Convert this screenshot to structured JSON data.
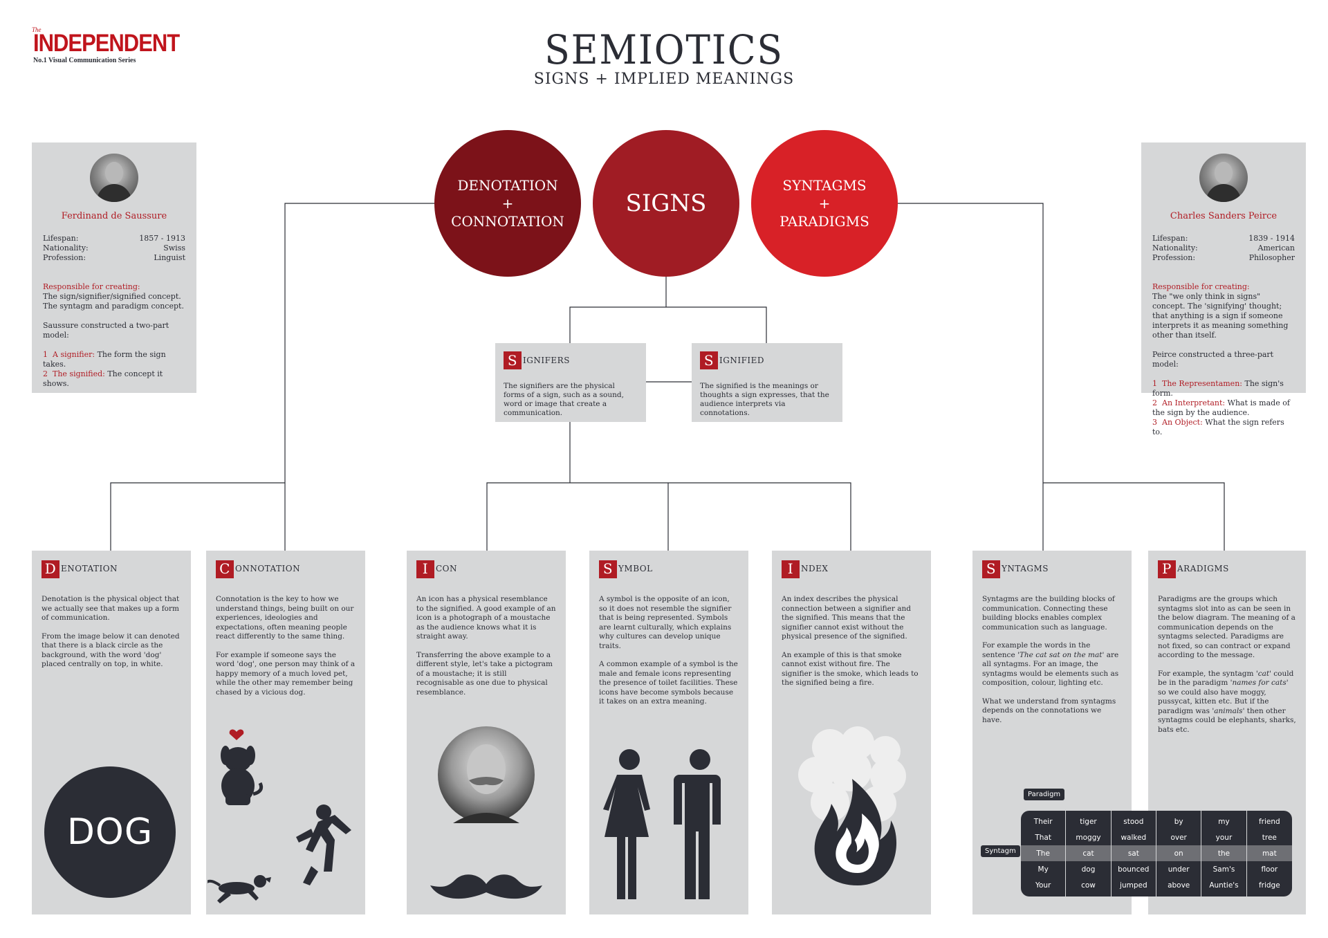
{
  "logo": {
    "the": "The",
    "name": "INDEPENDENT",
    "series": "No.1 Visual Communication Series"
  },
  "title": "SEMIOTICS",
  "subtitle": "SIGNS + IMPLIED MEANINGS",
  "circles": {
    "denotation": [
      "DENOTATION",
      "+",
      "CONNOTATION"
    ],
    "signs": "SIGNS",
    "syntagms": [
      "SYNTAGMS",
      "+",
      "PARADIGMS"
    ]
  },
  "colors": {
    "dark_red": "#7c1219",
    "mid_red": "#a01c24",
    "bright_red": "#d82127",
    "panel_grey": "#d6d7d8",
    "charcoal": "#2b2d35"
  },
  "saussure": {
    "name": "Ferdinand de Saussure",
    "lifespan_label": "Lifespan:",
    "lifespan": "1857 - 1913",
    "nationality_label": "Nationality:",
    "nationality": "Swiss",
    "profession_label": "Profession:",
    "profession": "Linguist",
    "responsible_label": "Responsible for creating:",
    "responsible_1": "The sign/signifier/signified concept.",
    "responsible_2": "The syntagm and paradigm concept.",
    "model": "Saussure constructed a two-part model:",
    "items": [
      {
        "n": "1",
        "label": "A signifier:",
        "text": "The form the sign takes."
      },
      {
        "n": "2",
        "label": "The signified:",
        "text": "The concept it shows."
      }
    ]
  },
  "peirce": {
    "name": "Charles Sanders Peirce",
    "lifespan_label": "Lifespan:",
    "lifespan": "1839 - 1914",
    "nationality_label": "Nationality:",
    "nationality": "American",
    "profession_label": "Profession:",
    "profession": "Philosopher",
    "responsible_label": "Responsible for creating:",
    "responsible_text": "The \"we only think in signs\" concept. The 'signifying' thought; that anything is a sign if someone interprets it as meaning something other than itself.",
    "model": "Peirce constructed a three-part model:",
    "items": [
      {
        "n": "1",
        "label": "The Representamen:",
        "text": "The sign's form."
      },
      {
        "n": "2",
        "label": "An Interpretant:",
        "text": "What is made of the sign by the audience."
      },
      {
        "n": "3",
        "label": "An Object:",
        "text": "What the sign refers to."
      }
    ]
  },
  "signifiers": {
    "cap": "S",
    "rest": "IGNIFERS",
    "text": "The signifiers are the physical forms of a sign, such as a sound, word or image that create a communication."
  },
  "signified": {
    "cap": "S",
    "rest": "IGNIFIED",
    "text": "The signified is the meanings or thoughts a sign expresses, that the audience interprets via connotations."
  },
  "denotation": {
    "cap": "D",
    "rest": "ENOTATION",
    "p1": "Denotation is the physical object that we actually see that makes up a form of communication.",
    "p2": "From the image below it can denoted that there is a black circle as the background, with the word 'dog' placed centrally on top, in white.",
    "dog": "DOG"
  },
  "connotation": {
    "cap": "C",
    "rest": "ONNOTATION",
    "p1": "Connotation is the key to how we understand things, being built on our experiences, ideologies and expectations, often meaning people react differently to the same thing.",
    "p2": "For example if someone says the word 'dog', one person may think of a happy memory of a much loved pet, while the other may remember being chased by a vicious dog."
  },
  "icon": {
    "cap": "I",
    "rest": "CON",
    "p1": "An icon has a physical resemblance to the signified. A good example of an icon is a photograph of a moustache as the audience knows what it is straight away.",
    "p2": "Transferring the above example to a different style, let's take a pictogram of a moustache; it is still recognisable as one due to physical resemblance."
  },
  "symbol": {
    "cap": "S",
    "rest": "YMBOL",
    "p1": "A symbol is the opposite of an icon, so it does not resemble the signifier that is being represented. Symbols are learnt culturally, which explains why cultures can develop unique traits.",
    "p2": "A common example of a symbol is the male and female icons representing the presence of toilet facilities. These icons have become symbols because it takes on an extra meaning."
  },
  "index": {
    "cap": "I",
    "rest": "NDEX",
    "p1": "An index describes the physical connection between a signifier and the signified. This means that the signifier cannot exist without the physical presence of the signified.",
    "p2": "An example of this is that smoke cannot exist without fire. The signifier is the smoke, which leads to the signified being a fire."
  },
  "syntagms": {
    "cap": "S",
    "rest": "YNTAGMS",
    "p1": "Syntagms are the building blocks of communication. Connecting these building blocks enables complex communication such as language.",
    "p2a": "For example the words in the sentence ",
    "p2em": "'The cat sat on the mat'",
    "p2b": " are all syntagms. For an image, the syntagms would be elements such as composition, colour, lighting etc.",
    "p3": "What we understand from syntagms depends on the connotations we have."
  },
  "paradigms": {
    "cap": "P",
    "rest": "ARADIGMS",
    "p1": "Paradigms are the groups which syntagms slot into as can be seen in the below diagram. The meaning of a communication depends on the syntagms selected. Paradigms are not fixed, so can contract or expand according to the message.",
    "p2a": "For example, the syntagm ",
    "p2em1": "'cat'",
    "p2b": " could be in the paradigm ",
    "p2em2": "'names for cats'",
    "p2c": " so we could also have moggy, pussycat, kitten etc. But if the paradigm was ",
    "p2em3": "'animals'",
    "p2d": " then other syntagms could be elephants, sharks, bats etc."
  },
  "grid": {
    "paradigm_label": "Paradigm",
    "syntagm_label": "Syntagm",
    "highlight_row": 2,
    "columns": [
      [
        "Their",
        "That",
        "The",
        "My",
        "Your"
      ],
      [
        "tiger",
        "moggy",
        "cat",
        "dog",
        "cow"
      ],
      [
        "stood",
        "walked",
        "sat",
        "bounced",
        "jumped"
      ],
      [
        "by",
        "over",
        "on",
        "under",
        "above"
      ],
      [
        "my",
        "your",
        "the",
        "Sam's",
        "Auntie's"
      ],
      [
        "friend",
        "tree",
        "mat",
        "floor",
        "fridge"
      ]
    ]
  },
  "icons": [
    "dog-heart-icon",
    "running-man-icon",
    "chasing-dog-icon",
    "portrait-photo",
    "moustache-icon",
    "female-toilet-icon",
    "male-toilet-icon",
    "smoke-icon",
    "fire-icon"
  ]
}
